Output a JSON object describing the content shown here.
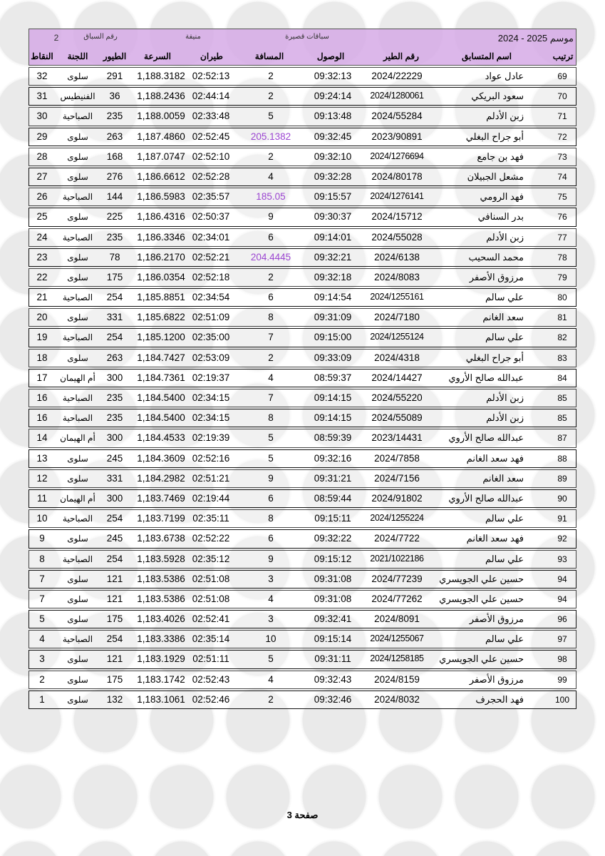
{
  "header": {
    "season": "موسم 2025 - 2024",
    "race_type": "سباقات قصيرة",
    "location": "منيفة",
    "race_number_label": "رقم السباق",
    "race_number": "2"
  },
  "columns": {
    "rank": "ترتيب",
    "name": "اسم المتسابق",
    "ring": "رقم الطير",
    "arrival": "الوصول",
    "distance": "المسافة",
    "flight": "طيران",
    "speed": "السرعة",
    "birds": "الطيور",
    "committee": "اللجنة",
    "points": "النقاط"
  },
  "highlight_color": "#9b45d1",
  "rows": [
    {
      "rank": "69",
      "name": "عادل عواد",
      "ring": "2024/22229",
      "arrival": "09:32:13",
      "distance": "2",
      "flight": "02:52:13",
      "speed": "1,188.3182",
      "birds": "291",
      "committee": "سلوى",
      "points": "32"
    },
    {
      "rank": "70",
      "name": "سعود البريكي",
      "ring": "2024/1280061",
      "arrival": "09:24:14",
      "distance": "2",
      "flight": "02:44:14",
      "speed": "1,188.2436",
      "birds": "36",
      "committee": "الفنيطيس",
      "points": "31"
    },
    {
      "rank": "71",
      "name": "زبن الأدلم",
      "ring": "2024/55284",
      "arrival": "09:13:48",
      "distance": "5",
      "flight": "02:33:48",
      "speed": "1,188.0059",
      "birds": "235",
      "committee": "الصباحية",
      "points": "30"
    },
    {
      "rank": "72",
      "name": "أبو جراح البغلي",
      "ring": "2023/90891",
      "arrival": "09:32:45",
      "distance": "205.1382",
      "distance_highlight": true,
      "flight": "02:52:45",
      "speed": "1,187.4860",
      "birds": "263",
      "committee": "سلوى",
      "points": "29"
    },
    {
      "rank": "73",
      "name": "فهد بن جامع",
      "ring": "2024/1276694",
      "arrival": "09:32:10",
      "distance": "2",
      "flight": "02:52:10",
      "speed": "1,187.0747",
      "birds": "168",
      "committee": "سلوى",
      "points": "28"
    },
    {
      "rank": "74",
      "name": "مشعل الجبيلان",
      "ring": "2024/80178",
      "arrival": "09:32:28",
      "distance": "4",
      "flight": "02:52:28",
      "speed": "1,186.6612",
      "birds": "276",
      "committee": "سلوى",
      "points": "27"
    },
    {
      "rank": "75",
      "name": "فهد الرومي",
      "ring": "2024/1276141",
      "arrival": "09:15:57",
      "distance": "185.05",
      "distance_highlight": true,
      "flight": "02:35:57",
      "speed": "1,186.5983",
      "birds": "144",
      "committee": "الصباحية",
      "points": "26"
    },
    {
      "rank": "76",
      "name": "بدر السنافي",
      "ring": "2024/15712",
      "arrival": "09:30:37",
      "distance": "9",
      "flight": "02:50:37",
      "speed": "1,186.4316",
      "birds": "225",
      "committee": "سلوى",
      "points": "25"
    },
    {
      "rank": "77",
      "name": "زبن الأدلم",
      "ring": "2024/55028",
      "arrival": "09:14:01",
      "distance": "6",
      "flight": "02:34:01",
      "speed": "1,186.3346",
      "birds": "235",
      "committee": "الصباحية",
      "points": "24"
    },
    {
      "rank": "78",
      "name": "محمد السحيب",
      "ring": "2024/6138",
      "arrival": "09:32:21",
      "distance": "204.4445",
      "distance_highlight": true,
      "flight": "02:52:21",
      "speed": "1,186.2170",
      "birds": "78",
      "committee": "سلوى",
      "points": "23"
    },
    {
      "rank": "79",
      "name": "مرزوق الأصفر",
      "ring": "2024/8083",
      "arrival": "09:32:18",
      "distance": "2",
      "flight": "02:52:18",
      "speed": "1,186.0354",
      "birds": "175",
      "committee": "سلوى",
      "points": "22"
    },
    {
      "rank": "80",
      "name": "علي سالم",
      "ring": "2024/1255161",
      "arrival": "09:14:54",
      "distance": "6",
      "flight": "02:34:54",
      "speed": "1,185.8851",
      "birds": "254",
      "committee": "الصباحية",
      "points": "21"
    },
    {
      "rank": "81",
      "name": "سعد الغانم",
      "ring": "2024/7180",
      "arrival": "09:31:09",
      "distance": "8",
      "flight": "02:51:09",
      "speed": "1,185.6822",
      "birds": "331",
      "committee": "سلوى",
      "points": "20"
    },
    {
      "rank": "82",
      "name": "علي سالم",
      "ring": "2024/1255124",
      "arrival": "09:15:00",
      "distance": "7",
      "flight": "02:35:00",
      "speed": "1,185.1200",
      "birds": "254",
      "committee": "الصباحية",
      "points": "19"
    },
    {
      "rank": "83",
      "name": "أبو جراح البغلي",
      "ring": "2024/4318",
      "arrival": "09:33:09",
      "distance": "2",
      "flight": "02:53:09",
      "speed": "1,184.7427",
      "birds": "263",
      "committee": "سلوى",
      "points": "18"
    },
    {
      "rank": "84",
      "name": "عبدالله صالح الأروي",
      "ring": "2024/14427",
      "arrival": "08:59:37",
      "distance": "4",
      "flight": "02:19:37",
      "speed": "1,184.7361",
      "birds": "300",
      "committee": "أم الهيمان",
      "points": "17"
    },
    {
      "rank": "85",
      "name": "زبن الأدلم",
      "ring": "2024/55220",
      "arrival": "09:14:15",
      "distance": "7",
      "flight": "02:34:15",
      "speed": "1,184.5400",
      "birds": "235",
      "committee": "الصباحية",
      "points": "16"
    },
    {
      "rank": "85",
      "name": "زبن الأدلم",
      "ring": "2024/55089",
      "arrival": "09:14:15",
      "distance": "8",
      "flight": "02:34:15",
      "speed": "1,184.5400",
      "birds": "235",
      "committee": "الصباحية",
      "points": "16"
    },
    {
      "rank": "87",
      "name": "عبدالله صالح الأروي",
      "ring": "2023/14431",
      "arrival": "08:59:39",
      "distance": "5",
      "flight": "02:19:39",
      "speed": "1,184.4533",
      "birds": "300",
      "committee": "أم الهيمان",
      "points": "14"
    },
    {
      "rank": "88",
      "name": "فهد سعد الغانم",
      "ring": "2024/7858",
      "arrival": "09:32:16",
      "distance": "5",
      "flight": "02:52:16",
      "speed": "1,184.3609",
      "birds": "245",
      "committee": "سلوى",
      "points": "13"
    },
    {
      "rank": "89",
      "name": "سعد الغانم",
      "ring": "2024/7156",
      "arrival": "09:31:21",
      "distance": "9",
      "flight": "02:51:21",
      "speed": "1,184.2982",
      "birds": "331",
      "committee": "سلوى",
      "points": "12"
    },
    {
      "rank": "90",
      "name": "عبدالله صالح الأروي",
      "ring": "2024/91802",
      "arrival": "08:59:44",
      "distance": "6",
      "flight": "02:19:44",
      "speed": "1,183.7469",
      "birds": "300",
      "committee": "أم الهيمان",
      "points": "11"
    },
    {
      "rank": "91",
      "name": "علي سالم",
      "ring": "2024/1255224",
      "arrival": "09:15:11",
      "distance": "8",
      "flight": "02:35:11",
      "speed": "1,183.7199",
      "birds": "254",
      "committee": "الصباحية",
      "points": "10"
    },
    {
      "rank": "92",
      "name": "فهد سعد الغانم",
      "ring": "2024/7722",
      "arrival": "09:32:22",
      "distance": "6",
      "flight": "02:52:22",
      "speed": "1,183.6738",
      "birds": "245",
      "committee": "سلوى",
      "points": "9"
    },
    {
      "rank": "93",
      "name": "علي سالم",
      "ring": "2021/1022186",
      "arrival": "09:15:12",
      "distance": "9",
      "flight": "02:35:12",
      "speed": "1,183.5928",
      "birds": "254",
      "committee": "الصباحية",
      "points": "8"
    },
    {
      "rank": "94",
      "name": "حسين علي الجويسري",
      "ring": "2024/77239",
      "arrival": "09:31:08",
      "distance": "3",
      "flight": "02:51:08",
      "speed": "1,183.5386",
      "birds": "121",
      "committee": "سلوى",
      "points": "7"
    },
    {
      "rank": "94",
      "name": "حسين علي الجويسري",
      "ring": "2024/77262",
      "arrival": "09:31:08",
      "distance": "4",
      "flight": "02:51:08",
      "speed": "1,183.5386",
      "birds": "121",
      "committee": "سلوى",
      "points": "7"
    },
    {
      "rank": "96",
      "name": "مرزوق الأصفر",
      "ring": "2024/8091",
      "arrival": "09:32:41",
      "distance": "3",
      "flight": "02:52:41",
      "speed": "1,183.4026",
      "birds": "175",
      "committee": "سلوى",
      "points": "5"
    },
    {
      "rank": "97",
      "name": "علي سالم",
      "ring": "2024/1255067",
      "arrival": "09:15:14",
      "distance": "10",
      "flight": "02:35:14",
      "speed": "1,183.3386",
      "birds": "254",
      "committee": "الصباحية",
      "points": "4"
    },
    {
      "rank": "98",
      "name": "حسين علي الجويسري",
      "ring": "2024/1258185",
      "arrival": "09:31:11",
      "distance": "5",
      "flight": "02:51:11",
      "speed": "1,183.1929",
      "birds": "121",
      "committee": "سلوى",
      "points": "3"
    },
    {
      "rank": "99",
      "name": "مرزوق الأصفر",
      "ring": "2024/8159",
      "arrival": "09:32:43",
      "distance": "4",
      "flight": "02:52:43",
      "speed": "1,183.1742",
      "birds": "175",
      "committee": "سلوى",
      "points": "2"
    },
    {
      "rank": "100",
      "name": "فهد الحجرف",
      "ring": "2024/8032",
      "arrival": "09:32:46",
      "distance": "2",
      "flight": "02:52:46",
      "speed": "1,183.1061",
      "birds": "132",
      "committee": "سلوى",
      "points": "1"
    }
  ],
  "footer": {
    "page_label": "صفحة 3"
  }
}
